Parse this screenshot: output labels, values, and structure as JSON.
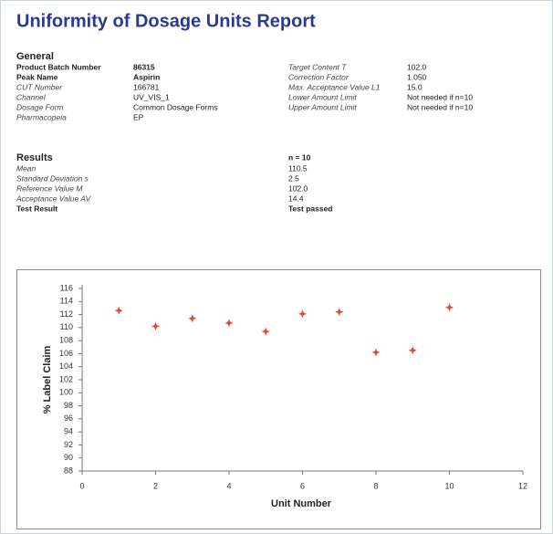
{
  "header": {
    "title": "Uniformity of Dosage Units Report"
  },
  "general": {
    "title": "General",
    "left": [
      {
        "label": "Product Batch Number",
        "value": "86315"
      },
      {
        "label": "Peak Name",
        "value": "Aspirin"
      },
      {
        "label": "CUT Number",
        "value": "166781"
      },
      {
        "label": "Channel",
        "value": "UV_VIS_1"
      },
      {
        "label": "Dosage Form",
        "value": "Common Dosage Forms"
      },
      {
        "label": "Pharmacopeia",
        "value": "EP"
      }
    ],
    "right": [
      {
        "label": "Target Content T",
        "value": "102.0"
      },
      {
        "label": "Correction Factor",
        "value": "1.050"
      },
      {
        "label": "Max. Acceptance Value L1",
        "value": "15.0"
      },
      {
        "label": "Lower Amount Limit",
        "value": "Not needed if n=10"
      },
      {
        "label": "Upper Amount Limit",
        "value": "Not needed if n=10"
      }
    ]
  },
  "results": {
    "title": "Results",
    "n": "n = 10",
    "rows": [
      {
        "label": "Mean",
        "value": "110.5"
      },
      {
        "label": "Standard Deviation s",
        "value": "2.5"
      },
      {
        "label": "Reference Value M",
        "value": "102.0"
      },
      {
        "label": "Acceptance Value AV",
        "value": "14.4"
      },
      {
        "label": "Test Result",
        "value": "Test passed"
      }
    ]
  },
  "chart_data": {
    "type": "scatter",
    "x_label": "Unit Number",
    "y_label": "% Label Claim",
    "x": [
      1,
      2,
      3,
      4,
      5,
      6,
      7,
      8,
      9,
      10
    ],
    "values": [
      112.6,
      110.2,
      111.4,
      110.7,
      109.4,
      112.1,
      112.4,
      106.2,
      106.5,
      113.1
    ],
    "color": "#e8472c",
    "xlim": [
      0,
      12
    ],
    "xticks": [
      0,
      2,
      4,
      6,
      8,
      10,
      12
    ],
    "ylim": [
      88,
      116
    ],
    "yticks": [
      88,
      90,
      92,
      94,
      96,
      98,
      100,
      102,
      104,
      106,
      108,
      110,
      112,
      114,
      116
    ]
  }
}
